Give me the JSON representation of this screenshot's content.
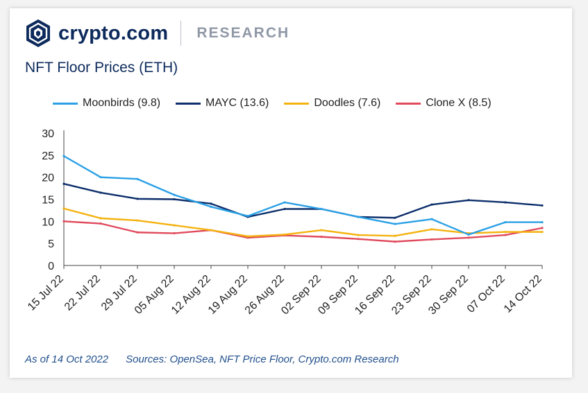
{
  "header": {
    "brand_name": "crypto.com",
    "brand_sub": "RESEARCH",
    "logo_icon": "crypto-com-lion-shield-icon"
  },
  "colors": {
    "brand_navy": "#0d2a5c",
    "moonbirds": "#2aa0e6",
    "mayc": "#0c2e6b",
    "doodles": "#f4b20e",
    "clone_x": "#e04a5c"
  },
  "footer": {
    "as_of": "As of 14 Oct 2022",
    "sources": "Sources: OpenSea, NFT Price Floor, Crypto.com Research"
  },
  "chart_data": {
    "type": "line",
    "title": "NFT Floor Prices (ETH)",
    "xlabel": "",
    "ylabel": "",
    "ylim": [
      0,
      30
    ],
    "yticks": [
      0,
      5,
      10,
      15,
      20,
      25,
      30
    ],
    "grid": false,
    "legend_position": "top",
    "x_tick_labels": [
      "15 Jul 22",
      "22 Jul 22",
      "29 Jul 22",
      "05 Aug 22",
      "12 Aug 22",
      "19 Aug 22",
      "26 Aug 22",
      "02 Sep 22",
      "09 Sep 22",
      "16 Sep 22",
      "23 Sep 22",
      "30 Sep 22",
      "07 Oct 22",
      "14 Oct 22"
    ],
    "x": [
      "15 Jul 22",
      "22 Jul 22",
      "29 Jul 22",
      "05 Aug 22",
      "12 Aug 22",
      "19 Aug 22",
      "26 Aug 22",
      "02 Sep 22",
      "09 Sep 22",
      "16 Sep 22",
      "23 Sep 22",
      "30 Sep 22",
      "07 Oct 22",
      "14 Oct 22"
    ],
    "series": [
      {
        "name": "Moonbirds (9.8)",
        "color": "#2aa0e6",
        "values": [
          24.8,
          20.0,
          19.6,
          16.0,
          13.3,
          11.2,
          14.3,
          12.8,
          11.0,
          9.4,
          10.5,
          7.0,
          9.8,
          9.8
        ]
      },
      {
        "name": "MAYC (13.6)",
        "color": "#0c2e6b",
        "values": [
          18.5,
          16.5,
          15.1,
          15.0,
          14.0,
          11.0,
          12.8,
          12.8,
          11.0,
          10.8,
          13.8,
          14.8,
          14.3,
          13.6
        ]
      },
      {
        "name": "Doodles (7.6)",
        "color": "#f4b20e",
        "values": [
          12.9,
          10.7,
          10.2,
          9.1,
          8.0,
          6.6,
          7.0,
          8.0,
          6.9,
          6.7,
          8.2,
          7.3,
          7.6,
          7.6
        ]
      },
      {
        "name": "Clone X (8.5)",
        "color": "#e04a5c",
        "values": [
          10.0,
          9.5,
          7.5,
          7.3,
          8.0,
          6.3,
          6.8,
          6.5,
          6.0,
          5.4,
          5.9,
          6.3,
          6.9,
          8.5
        ]
      }
    ]
  }
}
